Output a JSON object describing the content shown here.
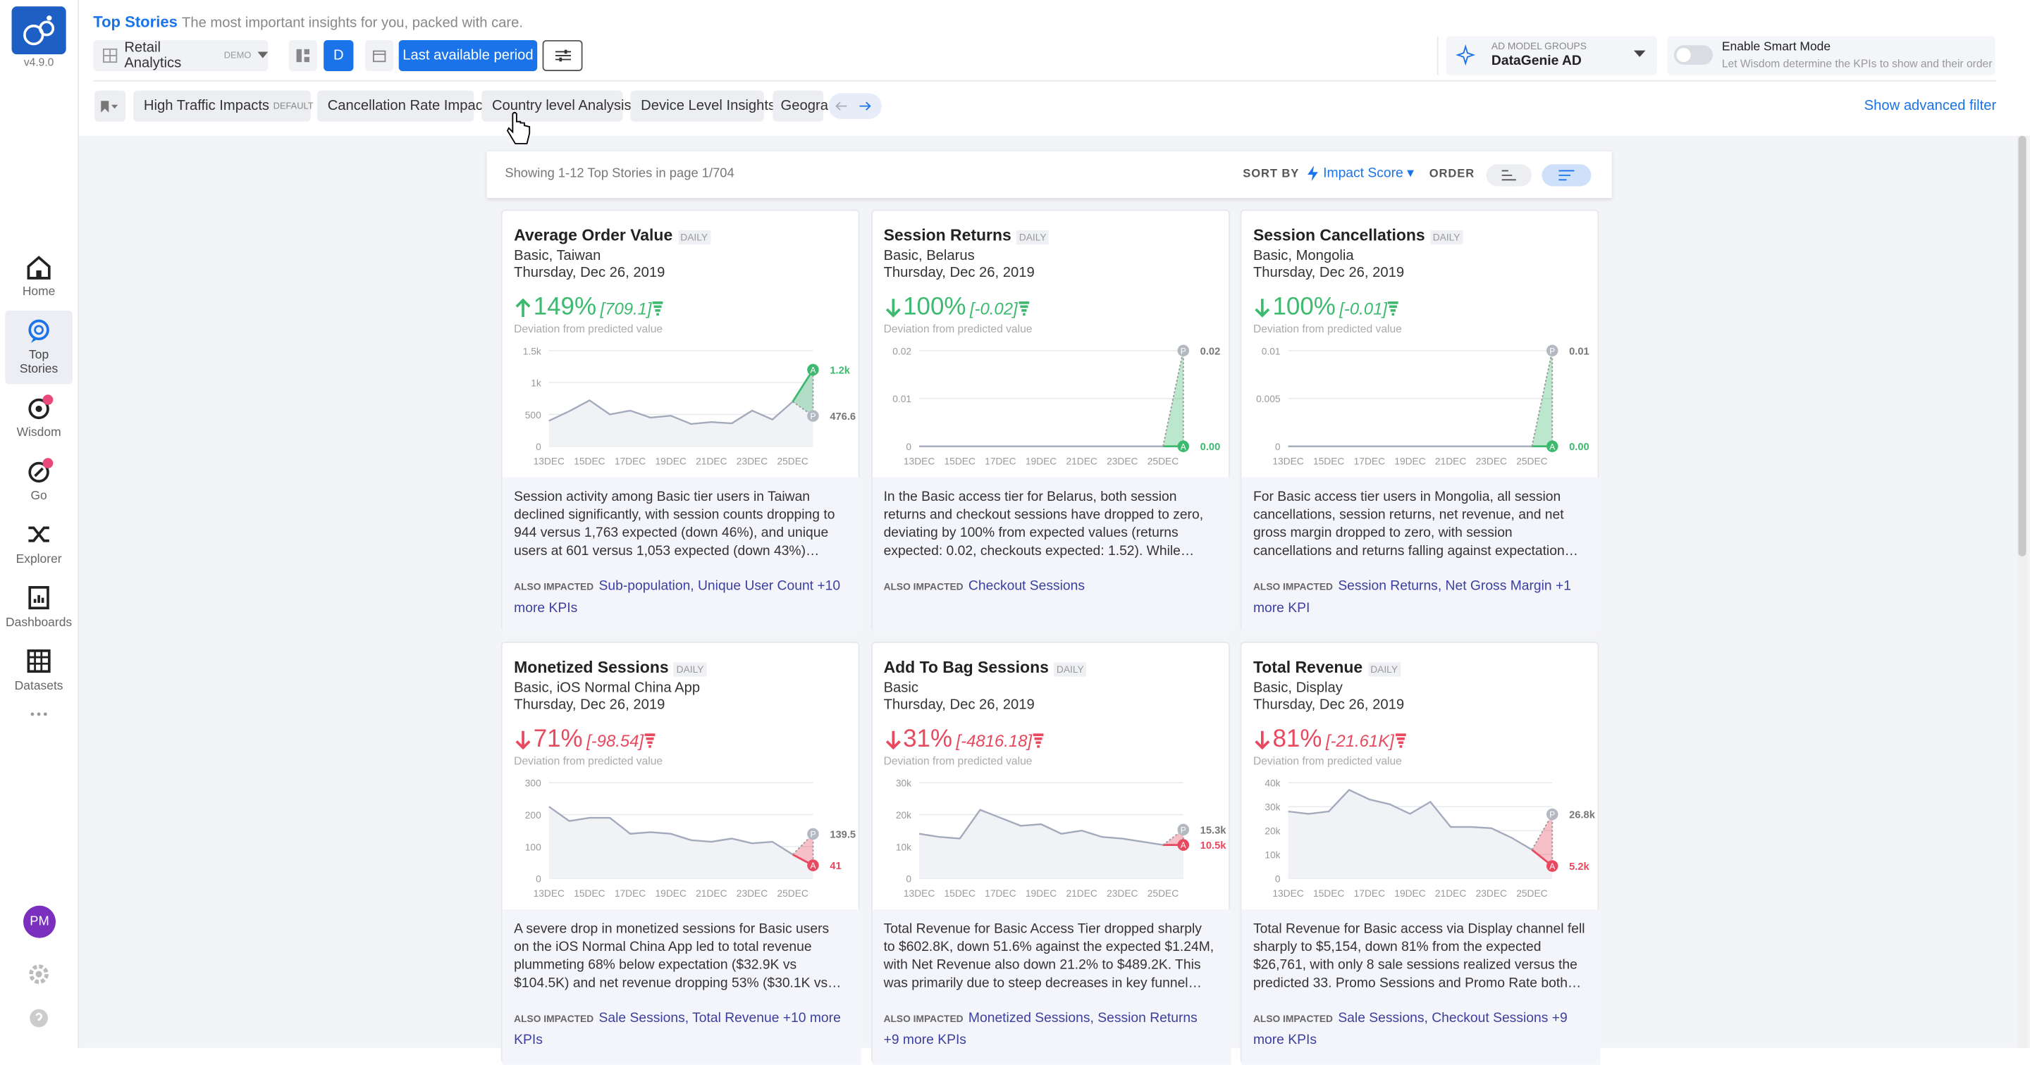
{
  "header": {
    "version": "v4.9.0",
    "title": "Top Stories",
    "subtitle": "The most important insights for you, packed with care.",
    "dataset": "Retail Analytics",
    "dataset_badge": "DEMO",
    "granularity": "D",
    "period": "Last available period",
    "model_group_label": "AD MODEL GROUPS",
    "model_group": "DataGenie AD",
    "smart_mode_title": "Enable Smart Mode",
    "smart_mode_desc": "Let Wisdom determine the KPIs to show and their order"
  },
  "tabs": {
    "items": [
      "High Traffic Impacts",
      "Cancellation Rate Impact",
      "Country level Analysis",
      "Device Level Insights",
      "Geogra"
    ],
    "default_badge": "DEFAULT",
    "advanced_filter": "Show advanced filter"
  },
  "nav": {
    "items": [
      "Home",
      "Top Stories",
      "Wisdom",
      "Go",
      "Explorer",
      "Dashboards",
      "Datasets"
    ],
    "avatar": "PM"
  },
  "toolbar": {
    "showing": "Showing 1-12 Top Stories in page 1/704",
    "sort_by": "SORT BY",
    "sort": "Impact Score",
    "order": "ORDER"
  },
  "markers": {
    "predicted": "P",
    "actual": "A"
  },
  "deviation_label": "Deviation from predicted value",
  "also_label": "ALSO IMPACTED",
  "cards": [
    {
      "title": "Average Order Value",
      "frequency": "DAILY",
      "segment": "Basic, Taiwan",
      "date": "Thursday, Dec 26, 2019",
      "direction": "up",
      "color": "#3dba6f",
      "change": "149%",
      "deviation": "[709.1]",
      "chart": {
        "categories": [
          "13DEC",
          null,
          "15DEC",
          null,
          "17DEC",
          null,
          "19DEC",
          null,
          "21DEC",
          null,
          "23DEC",
          null,
          "25DEC",
          null
        ],
        "values": [
          400,
          550,
          720,
          500,
          560,
          450,
          480,
          350,
          380,
          360,
          560,
          420,
          700,
          1200
        ],
        "ylim": [
          0,
          1500
        ],
        "yticks": [
          0,
          500,
          {
            "value": 1000,
            "label": "1k"
          },
          {
            "value": 1500,
            "label": "1.5k"
          }
        ],
        "predicted": 476.6,
        "predicted_label": "476.6",
        "actual_label": "1.2k"
      },
      "description": "Session activity among Basic tier users in Taiwan declined significantly, with session counts dropping to 944 versus 1,763 expected (down 46%), and unique users at 601 versus 1,053 expected (down 43%)…",
      "also": "Sub-population, Unique User Count +10 more KPIs"
    },
    {
      "title": "Session Returns",
      "frequency": "DAILY",
      "segment": "Basic, Belarus",
      "date": "Thursday, Dec 26, 2019",
      "direction": "down",
      "color": "#3dba6f",
      "change": "100%",
      "deviation": "[-0.02]",
      "chart": {
        "categories": [
          "13DEC",
          null,
          "15DEC",
          null,
          "17DEC",
          null,
          "19DEC",
          null,
          "21DEC",
          null,
          "23DEC",
          null,
          "25DEC",
          null
        ],
        "values": [
          0,
          0,
          0,
          0,
          0,
          0,
          0,
          0,
          0,
          0,
          0,
          0,
          0,
          0
        ],
        "ylim": [
          0,
          0.02
        ],
        "yticks": [
          0,
          0.01,
          0.02
        ],
        "predicted": 0.02,
        "predicted_label": "0.02",
        "actual_label": "0.00"
      },
      "description": "In the Basic access tier for Belarus, both session returns and checkout sessions have dropped to zero, deviating by 100% from expected values (returns expected: 0.02, checkouts expected: 1.52). While…",
      "also": "Checkout Sessions"
    },
    {
      "title": "Session Cancellations",
      "frequency": "DAILY",
      "segment": "Basic, Mongolia",
      "date": "Thursday, Dec 26, 2019",
      "direction": "down",
      "color": "#3dba6f",
      "change": "100%",
      "deviation": "[-0.01]",
      "chart": {
        "categories": [
          "13DEC",
          null,
          "15DEC",
          null,
          "17DEC",
          null,
          "19DEC",
          null,
          "21DEC",
          null,
          "23DEC",
          null,
          "25DEC",
          null
        ],
        "values": [
          0,
          0,
          0,
          0,
          0,
          0,
          0,
          0,
          0,
          0,
          0,
          0,
          0,
          0
        ],
        "ylim": [
          0,
          0.01
        ],
        "yticks": [
          0,
          0.005,
          0.01
        ],
        "predicted": 0.01,
        "predicted_label": "0.01",
        "actual_label": "0.00"
      },
      "description": "For Basic access tier users in Mongolia, all session cancellations, session returns, net revenue, and net gross margin dropped to zero, with session cancellations and returns falling against expectation…",
      "also": "Session Returns, Net Gross Margin +1 more KPI"
    },
    {
      "title": "Monetized Sessions",
      "frequency": "DAILY",
      "segment": "Basic, iOS Normal China App",
      "date": "Thursday, Dec 26, 2019",
      "direction": "down",
      "color": "#e8495f",
      "change": "71%",
      "deviation": "[-98.54]",
      "chart": {
        "categories": [
          "13DEC",
          null,
          "15DEC",
          null,
          "17DEC",
          null,
          "19DEC",
          null,
          "21DEC",
          null,
          "23DEC",
          null,
          "25DEC",
          null
        ],
        "values": [
          225,
          180,
          190,
          190,
          140,
          145,
          140,
          120,
          115,
          125,
          110,
          115,
          75,
          41
        ],
        "ylim": [
          0,
          300
        ],
        "yticks": [
          0,
          100,
          200,
          300
        ],
        "predicted": 139.5,
        "predicted_label": "139.5",
        "actual_label": "41"
      },
      "description": "A severe drop in monetized sessions for Basic users on the iOS Normal China App led to total revenue plummeting 68% below expectation ($32.9K vs $104.5K) and net revenue dropping 53% ($30.1K vs…",
      "also": "Sale Sessions, Total Revenue +10 more KPIs"
    },
    {
      "title": "Add To Bag Sessions",
      "frequency": "DAILY",
      "segment": "Basic",
      "date": "Thursday, Dec 26, 2019",
      "direction": "down",
      "color": "#e8495f",
      "change": "31%",
      "deviation": "[-4816.18]",
      "chart": {
        "categories": [
          "13DEC",
          null,
          "15DEC",
          null,
          "17DEC",
          null,
          "19DEC",
          null,
          "21DEC",
          null,
          "23DEC",
          null,
          "25DEC",
          null
        ],
        "values": [
          14000,
          13000,
          12500,
          21500,
          19000,
          16500,
          17000,
          14000,
          15000,
          13000,
          12500,
          11500,
          10500,
          10500
        ],
        "ylim": [
          0,
          30000
        ],
        "yticks": [
          0,
          {
            "value": 10000,
            "label": "10k"
          },
          {
            "value": 20000,
            "label": "20k"
          },
          {
            "value": 30000,
            "label": "30k"
          }
        ],
        "predicted": 15300,
        "predicted_label": "15.3k",
        "actual_label": "10.5k"
      },
      "description": "Total Revenue for Basic Access Tier dropped sharply to $602.8K, down 51.6% against the expected $1.24M, with Net Revenue also down 21.2% to $489.2K. This was primarily due to steep decreases in key funnel…",
      "also": "Monetized Sessions, Session Returns +9 more KPIs"
    },
    {
      "title": "Total Revenue",
      "frequency": "DAILY",
      "segment": "Basic, Display",
      "date": "Thursday, Dec 26, 2019",
      "direction": "down",
      "color": "#e8495f",
      "change": "81%",
      "deviation": "[-21.61K]",
      "chart": {
        "categories": [
          "13DEC",
          null,
          "15DEC",
          null,
          "17DEC",
          null,
          "19DEC",
          null,
          "21DEC",
          null,
          "23DEC",
          null,
          "25DEC",
          null
        ],
        "values": [
          28000,
          27000,
          28000,
          37000,
          33000,
          31000,
          27000,
          32000,
          21500,
          21500,
          21000,
          17000,
          12000,
          5200
        ],
        "ylim": [
          0,
          40000
        ],
        "yticks": [
          0,
          {
            "value": 10000,
            "label": "10k"
          },
          {
            "value": 20000,
            "label": "20k"
          },
          {
            "value": 30000,
            "label": "30k"
          },
          {
            "value": 40000,
            "label": "40k"
          }
        ],
        "predicted": 26800,
        "predicted_label": "26.8k",
        "actual_label": "5.2k"
      },
      "description": "Total Revenue for Basic access via Display channel fell sharply to $5,154, down 81% from the expected $26,761, with only 8 sale sessions realized versus the predicted 33. Promo Sessions and Promo Rate both…",
      "also": "Sale Sessions, Checkout Sessions +9 more KPIs"
    }
  ]
}
